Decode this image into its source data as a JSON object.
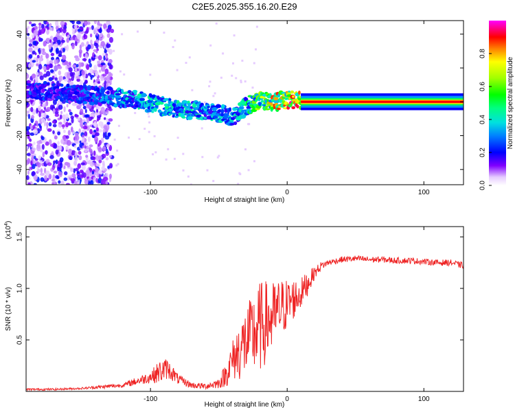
{
  "title": "C2E5.2025.355.16.20.E29",
  "chart_data": [
    {
      "type": "heatmap",
      "title": "C2E5.2025.355.16.20.E29",
      "xlabel": "Height of straight line (km)",
      "ylabel": "Frequency (Hz)",
      "xlim": [
        -191,
        129
      ],
      "ylim": [
        -49,
        48
      ],
      "xticks": [
        -100,
        0,
        100
      ],
      "xtick_labels": [
        "-100",
        "0",
        "100"
      ],
      "yticks": [
        40,
        20,
        0,
        -20,
        -40
      ],
      "ytick_labels": [
        "40",
        "20",
        "0",
        "-20",
        "-40"
      ],
      "colorbar": {
        "label": "Normalized spectral amplitude",
        "range": [
          0,
          1
        ],
        "ticks": [
          0.0,
          0.2,
          0.4,
          0.6,
          0.8
        ],
        "tick_labels": [
          "0.0",
          "0.2",
          "0.4",
          "0.6",
          "0.8"
        ]
      },
      "ridge": {
        "x": [
          -190,
          -170,
          -150,
          -130,
          -110,
          -90,
          -70,
          -50,
          -40,
          -30,
          -20,
          -10,
          0,
          10,
          50,
          90,
          129
        ],
        "freq": [
          7,
          6,
          4,
          3,
          1,
          -3,
          -5,
          -7,
          -9,
          -2,
          1,
          0,
          1,
          1,
          0,
          0,
          0
        ],
        "amplitude": [
          0.3,
          0.25,
          0.3,
          0.35,
          0.45,
          0.45,
          0.45,
          0.4,
          0.4,
          0.5,
          0.7,
          0.85,
          0.9,
          1.0,
          1.0,
          1.0,
          1.0
        ]
      }
    },
    {
      "type": "line",
      "title": "",
      "xlabel": "Height of straight line (km)",
      "ylabel": "SNR (10 * v/v)",
      "y_multiplier": "(x10^4)",
      "y_multiplier_base": "(x10",
      "y_multiplier_exp": "4",
      "y_multiplier_close": ")",
      "xlim": [
        -191,
        129
      ],
      "ylim": [
        0,
        1.6
      ],
      "xticks": [
        -100,
        0,
        100
      ],
      "xtick_labels": [
        "-100",
        "0",
        "100"
      ],
      "yticks": [
        0.5,
        1.0,
        1.5
      ],
      "ytick_labels": [
        "0.5",
        "1.0",
        "1.5"
      ],
      "color": "#ee2222",
      "series": [
        {
          "name": "SNR",
          "x": [
            -191,
            -170,
            -150,
            -130,
            -120,
            -110,
            -100,
            -92,
            -88,
            -84,
            -80,
            -75,
            -70,
            -60,
            -50,
            -45,
            -40,
            -35,
            -30,
            -25,
            -20,
            -15,
            -10,
            -5,
            0,
            5,
            10,
            15,
            20,
            25,
            30,
            40,
            50,
            60,
            70,
            80,
            90,
            100,
            110,
            120,
            129
          ],
          "y": [
            0.02,
            0.02,
            0.03,
            0.05,
            0.06,
            0.1,
            0.14,
            0.2,
            0.22,
            0.18,
            0.12,
            0.09,
            0.06,
            0.05,
            0.08,
            0.16,
            0.3,
            0.4,
            0.48,
            0.55,
            0.62,
            0.68,
            0.72,
            0.8,
            0.85,
            0.9,
            0.95,
            1.05,
            1.15,
            1.22,
            1.25,
            1.28,
            1.29,
            1.28,
            1.28,
            1.27,
            1.27,
            1.26,
            1.25,
            1.25,
            1.22
          ],
          "noise": [
            0.01,
            0.01,
            0.01,
            0.02,
            0.02,
            0.04,
            0.06,
            0.12,
            0.1,
            0.08,
            0.05,
            0.04,
            0.03,
            0.03,
            0.05,
            0.12,
            0.2,
            0.3,
            0.35,
            0.4,
            0.45,
            0.4,
            0.35,
            0.3,
            0.25,
            0.2,
            0.15,
            0.12,
            0.06,
            0.04,
            0.03,
            0.03,
            0.03,
            0.03,
            0.03,
            0.03,
            0.03,
            0.03,
            0.03,
            0.03,
            0.03
          ]
        }
      ]
    }
  ]
}
